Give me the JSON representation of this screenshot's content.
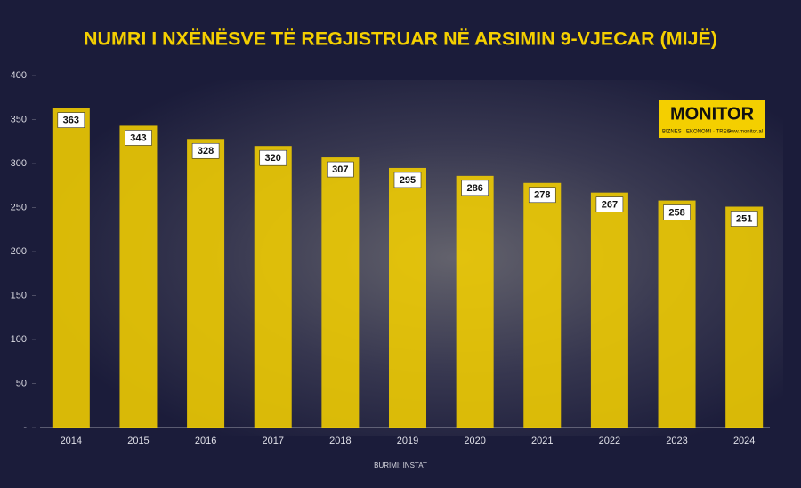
{
  "chart_data": {
    "type": "bar",
    "title": "NUMRI I NXËNËSVE TË REGJISTRUAR NË ARSIMIN 9-VJECAR (MIJË)",
    "categories": [
      "2014",
      "2015",
      "2016",
      "2017",
      "2018",
      "2019",
      "2020",
      "2021",
      "2022",
      "2023",
      "2024"
    ],
    "values": [
      363,
      343,
      328,
      320,
      307,
      295,
      286,
      278,
      267,
      258,
      251
    ],
    "color": "#f4cf00",
    "ylim": [
      0,
      400
    ],
    "yticks": [
      {
        "value": 0,
        "label": "-"
      },
      50,
      100,
      150,
      200,
      250,
      300,
      350,
      400
    ],
    "grid": false,
    "source": "BURIMI: INSTAT",
    "logo": {
      "name": "MONITOR",
      "tagline": "BIZNES · EKONOMI · TREG",
      "url": "www.monitor.al"
    }
  }
}
